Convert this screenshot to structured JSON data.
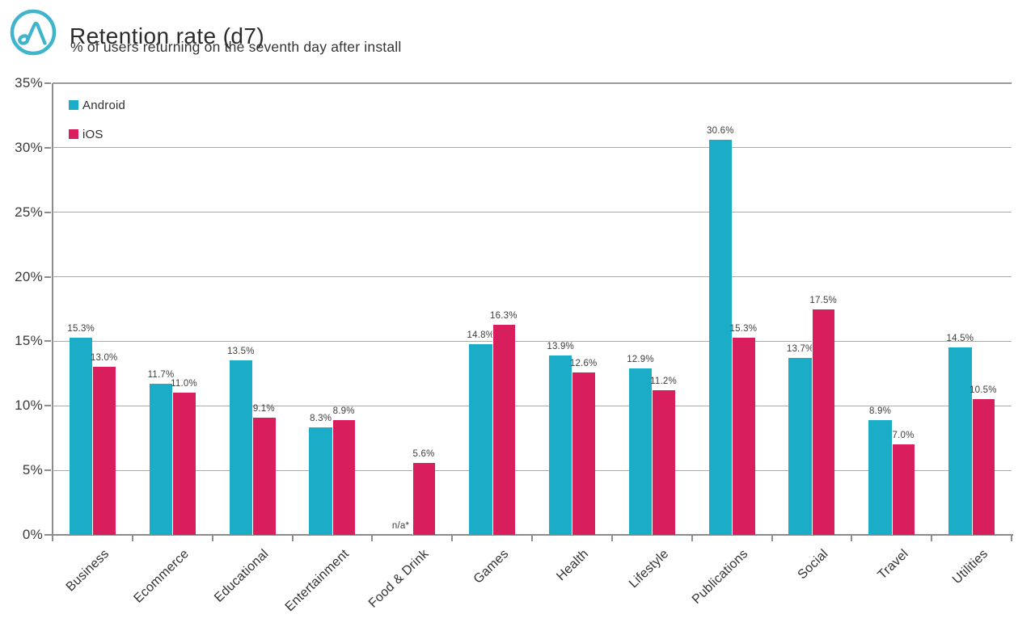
{
  "header": {
    "title": "Retention rate (d7)",
    "subtitle": "% of users returning on the seventh day after install",
    "logo_color": "#3FB4CB"
  },
  "colors": {
    "android": "#1BADC7",
    "ios": "#D81E5C",
    "gridline": "#ABABAB",
    "axis": "#8C8C8C",
    "label_text": "#3D3D3D"
  },
  "chart_data": {
    "type": "bar",
    "title": "Retention rate (d7)",
    "subtitle": "% of users returning on the seventh day after install",
    "categories": [
      "Business",
      "Ecommerce",
      "Educational",
      "Entertainment",
      "Food & Drink",
      "Games",
      "Health",
      "Lifestyle",
      "Publications",
      "Social",
      "Travel",
      "Utilities"
    ],
    "series": [
      {
        "name": "Android",
        "color": "#1BADC7",
        "values": [
          15.3,
          11.7,
          13.5,
          8.3,
          null,
          14.8,
          13.9,
          12.9,
          30.6,
          13.7,
          8.9,
          14.5
        ],
        "labels": [
          "15.3%",
          "11.7%",
          "13.5%",
          "8.3%",
          "n/a*",
          "14.8%",
          "13.9%",
          "12.9%",
          "30.6%",
          "13.7%",
          "8.9%",
          "14.5%"
        ]
      },
      {
        "name": "iOS",
        "color": "#D81E5C",
        "values": [
          13.0,
          11.0,
          9.1,
          8.9,
          5.6,
          16.3,
          12.6,
          11.2,
          15.3,
          17.5,
          7.0,
          10.5
        ],
        "labels": [
          "13.0%",
          "11.0%",
          "9.1%",
          "8.9%",
          "5.6%",
          "16.3%",
          "12.6%",
          "11.2%",
          "15.3%",
          "17.5%",
          "7.0%",
          "10.5%"
        ]
      }
    ],
    "ylabel": "",
    "xlabel": "",
    "ylim": [
      0,
      35
    ],
    "ytick_step": 5,
    "ytick_labels": [
      "0%",
      "5%",
      "10%",
      "15%",
      "20%",
      "25%",
      "30%",
      "35%"
    ],
    "grid": true,
    "legend_position": "top-left-inside"
  }
}
